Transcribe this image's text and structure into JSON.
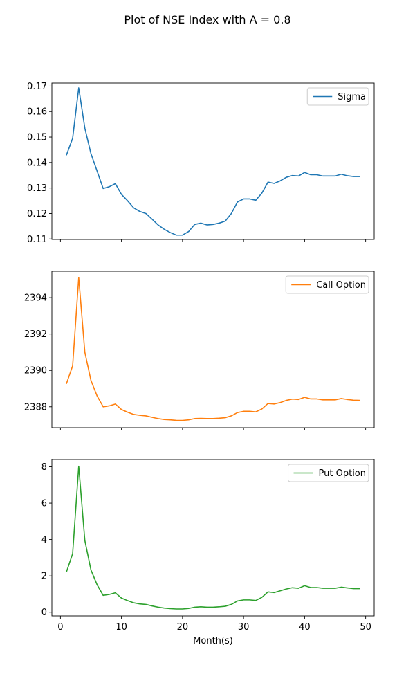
{
  "figure_title": "Plot of NSE Index with A = 0.8",
  "chart_data": [
    {
      "type": "line",
      "title": "",
      "xlabel": "",
      "ylabel": "",
      "legend_position": "top-right",
      "grid": false,
      "xlim": [
        -1.4,
        51.4
      ],
      "ylim": [
        0.1098,
        0.1712
      ],
      "xticks": [
        0,
        10,
        20,
        30,
        40,
        50
      ],
      "show_xtick_labels": false,
      "yticks": [
        0.11,
        0.12,
        0.13,
        0.14,
        0.15,
        0.16,
        0.17
      ],
      "ytick_labels": [
        "0.11",
        "0.12",
        "0.13",
        "0.14",
        "0.15",
        "0.16",
        "0.17"
      ],
      "series": [
        {
          "name": "Sigma",
          "color": "#1f77b4",
          "x": [
            1,
            2,
            3,
            4,
            5,
            6,
            7,
            8,
            9,
            10,
            11,
            12,
            13,
            14,
            15,
            16,
            17,
            18,
            19,
            20,
            21,
            22,
            23,
            24,
            25,
            26,
            27,
            28,
            29,
            30,
            31,
            32,
            33,
            34,
            35,
            36,
            37,
            38,
            39,
            40,
            41,
            42,
            43,
            44,
            45,
            46,
            47,
            48,
            49
          ],
          "values": [
            0.143,
            0.1495,
            0.1693,
            0.1535,
            0.1435,
            0.1367,
            0.1298,
            0.1305,
            0.1317,
            0.1275,
            0.125,
            0.1222,
            0.1208,
            0.12,
            0.1178,
            0.1155,
            0.1138,
            0.1125,
            0.1115,
            0.1115,
            0.1129,
            0.1157,
            0.1162,
            0.1155,
            0.1157,
            0.1162,
            0.117,
            0.12,
            0.1245,
            0.1257,
            0.1257,
            0.1252,
            0.128,
            0.1323,
            0.1318,
            0.1328,
            0.1342,
            0.1349,
            0.1347,
            0.1361,
            0.1352,
            0.1352,
            0.1347,
            0.1347,
            0.1347,
            0.1354,
            0.1348,
            0.1345,
            0.1345
          ]
        }
      ]
    },
    {
      "type": "line",
      "title": "",
      "xlabel": "",
      "ylabel": "",
      "legend_position": "top-right",
      "grid": false,
      "xlim": [
        -1.4,
        51.4
      ],
      "ylim": [
        2386.85,
        2395.45
      ],
      "xticks": [
        0,
        10,
        20,
        30,
        40,
        50
      ],
      "show_xtick_labels": false,
      "yticks": [
        2388,
        2390,
        2392,
        2394
      ],
      "ytick_labels": [
        "2388",
        "2390",
        "2392",
        "2394"
      ],
      "series": [
        {
          "name": "Call Option",
          "color": "#ff7f0e",
          "x": [
            1,
            2,
            3,
            4,
            5,
            6,
            7,
            8,
            9,
            10,
            11,
            12,
            13,
            14,
            15,
            16,
            17,
            18,
            19,
            20,
            21,
            22,
            23,
            24,
            25,
            26,
            27,
            28,
            29,
            30,
            31,
            32,
            33,
            34,
            35,
            36,
            37,
            38,
            39,
            40,
            41,
            42,
            43,
            44,
            45,
            46,
            47,
            48,
            49
          ],
          "values": [
            2389.28,
            2390.25,
            2395.1,
            2391.0,
            2389.45,
            2388.6,
            2388.0,
            2388.05,
            2388.15,
            2387.85,
            2387.7,
            2387.58,
            2387.53,
            2387.5,
            2387.42,
            2387.35,
            2387.3,
            2387.28,
            2387.25,
            2387.25,
            2387.28,
            2387.35,
            2387.36,
            2387.35,
            2387.35,
            2387.37,
            2387.4,
            2387.5,
            2387.68,
            2387.75,
            2387.75,
            2387.72,
            2387.88,
            2388.18,
            2388.15,
            2388.23,
            2388.35,
            2388.42,
            2388.4,
            2388.52,
            2388.43,
            2388.43,
            2388.38,
            2388.38,
            2388.38,
            2388.45,
            2388.4,
            2388.36,
            2388.35
          ]
        }
      ]
    },
    {
      "type": "line",
      "title": "",
      "xlabel": "Month(s)",
      "ylabel": "",
      "legend_position": "top-right",
      "grid": false,
      "xlim": [
        -1.4,
        51.4
      ],
      "ylim": [
        -0.2,
        8.4
      ],
      "xticks": [
        0,
        10,
        20,
        30,
        40,
        50
      ],
      "show_xtick_labels": true,
      "xtick_labels": [
        "0",
        "10",
        "20",
        "30",
        "40",
        "50"
      ],
      "yticks": [
        0,
        2,
        4,
        6,
        8
      ],
      "ytick_labels": [
        "0",
        "2",
        "4",
        "6",
        "8"
      ],
      "series": [
        {
          "name": "Put Option",
          "color": "#2ca02c",
          "x": [
            1,
            2,
            3,
            4,
            5,
            6,
            7,
            8,
            9,
            10,
            11,
            12,
            13,
            14,
            15,
            16,
            17,
            18,
            19,
            20,
            21,
            22,
            23,
            24,
            25,
            26,
            27,
            28,
            29,
            30,
            31,
            32,
            33,
            34,
            35,
            36,
            37,
            38,
            39,
            40,
            41,
            42,
            43,
            44,
            45,
            46,
            47,
            48,
            49
          ],
          "values": [
            2.23,
            3.22,
            8.03,
            3.95,
            2.33,
            1.52,
            0.93,
            0.98,
            1.07,
            0.78,
            0.64,
            0.52,
            0.46,
            0.43,
            0.35,
            0.28,
            0.23,
            0.2,
            0.18,
            0.18,
            0.21,
            0.28,
            0.3,
            0.28,
            0.28,
            0.3,
            0.33,
            0.43,
            0.62,
            0.68,
            0.68,
            0.65,
            0.82,
            1.12,
            1.08,
            1.18,
            1.28,
            1.35,
            1.32,
            1.46,
            1.36,
            1.36,
            1.32,
            1.32,
            1.32,
            1.38,
            1.34,
            1.3,
            1.3
          ]
        }
      ]
    }
  ]
}
